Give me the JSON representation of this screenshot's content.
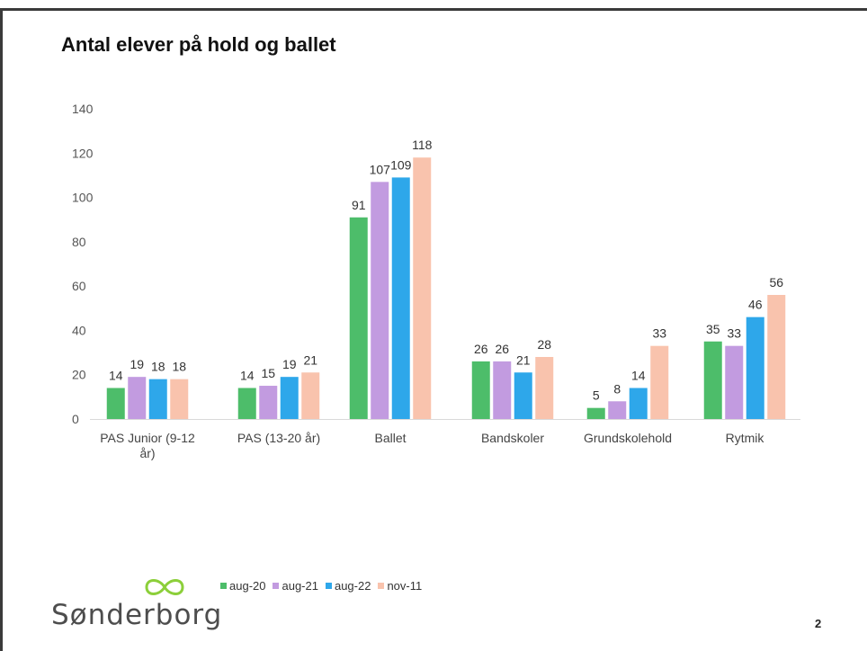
{
  "slide": {
    "title": "Antal elever på hold og ballet",
    "page_number": "2",
    "logo_text": "Sønderborg"
  },
  "logo_icon": "infinity-icon",
  "colors": {
    "aug-20": "#4dbd6a",
    "aug-21": "#c29be0",
    "aug-22": "#2ea7ea",
    "nov-11": "#f9c3ad",
    "logo_green": "#8ccf3a"
  },
  "chart_data": {
    "type": "bar",
    "title": "",
    "xlabel": "",
    "ylabel": "",
    "ylim": [
      0,
      140
    ],
    "yticks": [
      0,
      20,
      40,
      60,
      80,
      100,
      120,
      140
    ],
    "grid": false,
    "legend_position": "bottom",
    "categories": [
      [
        "PAS Junior (9-12",
        "år)"
      ],
      [
        "PAS (13-20 år)"
      ],
      [
        "Ballet"
      ],
      [
        "Bandskoler"
      ],
      [
        "Grundskolehold"
      ],
      [
        "Rytmik"
      ]
    ],
    "series": [
      {
        "name": "aug-20",
        "values": [
          14,
          14,
          91,
          26,
          5,
          35
        ]
      },
      {
        "name": "aug-21",
        "values": [
          19,
          15,
          107,
          26,
          8,
          33
        ]
      },
      {
        "name": "aug-22",
        "values": [
          18,
          19,
          109,
          21,
          14,
          46
        ]
      },
      {
        "name": "nov-11",
        "values": [
          18,
          21,
          118,
          28,
          33,
          56
        ]
      }
    ]
  }
}
